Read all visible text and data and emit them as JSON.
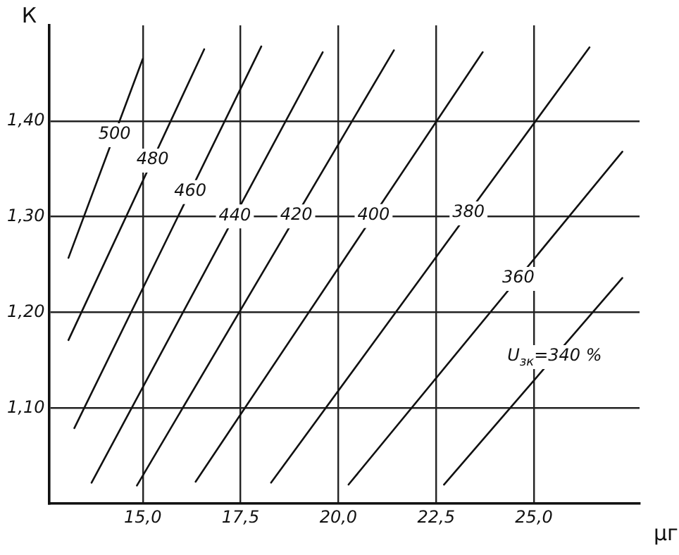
{
  "chart_data": {
    "type": "line",
    "xlabel": "μг",
    "ylabel": "К",
    "xlim": [
      12.6,
      27.7
    ],
    "ylim": [
      1.0,
      1.5
    ],
    "xticks": [
      {
        "value": 15,
        "label": "15,0"
      },
      {
        "value": 17.5,
        "label": "17,5"
      },
      {
        "value": 20,
        "label": "20,0"
      },
      {
        "value": 22.5,
        "label": "22,5"
      },
      {
        "value": 25,
        "label": "25,0"
      }
    ],
    "yticks": [
      {
        "value": 1.1,
        "label": "1,10"
      },
      {
        "value": 1.2,
        "label": "1,20"
      },
      {
        "value": 1.3,
        "label": "1,30"
      },
      {
        "value": 1.4,
        "label": "1,40"
      }
    ],
    "grid": true,
    "legend": false,
    "marker": "none",
    "line_style": "solid",
    "series": [
      {
        "name": "500",
        "color": "#111111",
        "x": [
          13.1,
          15.0
        ],
        "values": [
          1.257,
          1.465
        ]
      },
      {
        "name": "480",
        "color": "#111111",
        "x": [
          13.1,
          16.57
        ],
        "values": [
          1.171,
          1.475
        ]
      },
      {
        "name": "460",
        "color": "#111111",
        "x": [
          13.25,
          18.03
        ],
        "values": [
          1.079,
          1.478
        ]
      },
      {
        "name": "440",
        "color": "#111111",
        "x": [
          13.69,
          19.6
        ],
        "values": [
          1.022,
          1.472
        ]
      },
      {
        "name": "420",
        "color": "#111111",
        "x": [
          14.85,
          21.42
        ],
        "values": [
          1.019,
          1.474
        ]
      },
      {
        "name": "400",
        "color": "#111111",
        "x": [
          16.35,
          23.69
        ],
        "values": [
          1.023,
          1.472
        ]
      },
      {
        "name": "380",
        "color": "#111111",
        "x": [
          18.28,
          26.42
        ],
        "values": [
          1.022,
          1.477
        ]
      },
      {
        "name": "360",
        "color": "#111111",
        "x": [
          20.26,
          27.26
        ],
        "values": [
          1.02,
          1.368
        ]
      },
      {
        "name": "U$_{зк}$=340 %",
        "color": "#111111",
        "x": [
          22.7,
          27.26
        ],
        "values": [
          1.02,
          1.236
        ]
      }
    ]
  }
}
